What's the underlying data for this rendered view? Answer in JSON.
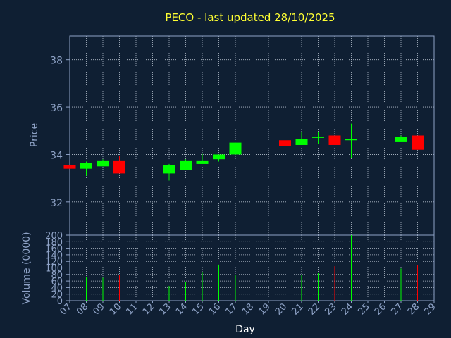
{
  "chart_data": [
    {
      "type": "candlestick",
      "title": "PECO - last updated 28/10/2025",
      "ylabel": "Price",
      "ylim": [
        30.6,
        39.0
      ],
      "y_ticks": [
        32,
        34,
        36,
        38
      ],
      "grid": true,
      "categories": [
        "07",
        "08",
        "09",
        "10",
        "11",
        "12",
        "13",
        "14",
        "15",
        "16",
        "17",
        "18",
        "19",
        "20",
        "21",
        "22",
        "23",
        "24",
        "25",
        "26",
        "27",
        "28",
        "29"
      ],
      "candles": [
        {
          "day": "07",
          "open": 33.55,
          "high": 33.55,
          "low": 33.4,
          "close": 33.4
        },
        {
          "day": "08",
          "open": 33.4,
          "high": 33.7,
          "low": 33.1,
          "close": 33.65
        },
        {
          "day": "09",
          "open": 33.5,
          "high": 33.8,
          "low": 33.5,
          "close": 33.75
        },
        {
          "day": "10",
          "open": 33.75,
          "high": 33.95,
          "low": 33.2,
          "close": 33.2
        },
        {
          "day": "13",
          "open": 33.2,
          "high": 33.6,
          "low": 32.9,
          "close": 33.55
        },
        {
          "day": "14",
          "open": 33.35,
          "high": 33.8,
          "low": 33.35,
          "close": 33.75
        },
        {
          "day": "15",
          "open": 33.6,
          "high": 34.05,
          "low": 33.6,
          "close": 33.75
        },
        {
          "day": "16",
          "open": 33.8,
          "high": 34.0,
          "low": 33.7,
          "close": 34.0
        },
        {
          "day": "17",
          "open": 34.0,
          "high": 34.5,
          "low": 34.0,
          "close": 34.5
        },
        {
          "day": "20",
          "open": 34.6,
          "high": 34.8,
          "low": 33.95,
          "close": 34.35
        },
        {
          "day": "21",
          "open": 34.4,
          "high": 34.95,
          "low": 34.4,
          "close": 34.65
        },
        {
          "day": "22",
          "open": 34.7,
          "high": 34.95,
          "low": 34.45,
          "close": 34.75
        },
        {
          "day": "23",
          "open": 34.8,
          "high": 34.8,
          "low": 34.4,
          "close": 34.4
        },
        {
          "day": "24",
          "open": 34.6,
          "high": 35.3,
          "low": 33.85,
          "close": 34.65
        },
        {
          "day": "27",
          "open": 34.55,
          "high": 34.8,
          "low": 34.55,
          "close": 34.75
        },
        {
          "day": "28",
          "open": 34.8,
          "high": 34.8,
          "low": 34.2,
          "close": 34.2
        }
      ]
    },
    {
      "type": "bar",
      "ylabel": "Volume (0000)",
      "xlabel": "Day",
      "ylim": [
        0,
        200
      ],
      "y_ticks": [
        0,
        20,
        40,
        60,
        80,
        100,
        120,
        140,
        160,
        180,
        200
      ],
      "grid": true,
      "categories": [
        "07",
        "08",
        "09",
        "10",
        "11",
        "12",
        "13",
        "14",
        "15",
        "16",
        "17",
        "18",
        "19",
        "20",
        "21",
        "22",
        "23",
        "24",
        "25",
        "26",
        "27",
        "28",
        "29"
      ],
      "bars": [
        {
          "day": "08",
          "value": 72,
          "color": "green"
        },
        {
          "day": "09",
          "value": 70,
          "color": "green"
        },
        {
          "day": "10",
          "value": 78,
          "color": "red"
        },
        {
          "day": "13",
          "value": 45,
          "color": "green"
        },
        {
          "day": "14",
          "value": 58,
          "color": "green"
        },
        {
          "day": "15",
          "value": 88,
          "color": "green"
        },
        {
          "day": "16",
          "value": 110,
          "color": "green"
        },
        {
          "day": "17",
          "value": 78,
          "color": "green"
        },
        {
          "day": "20",
          "value": 62,
          "color": "red"
        },
        {
          "day": "21",
          "value": 78,
          "color": "green"
        },
        {
          "day": "22",
          "value": 84,
          "color": "green"
        },
        {
          "day": "23",
          "value": 105,
          "color": "red"
        },
        {
          "day": "24",
          "value": 200,
          "color": "green"
        },
        {
          "day": "27",
          "value": 98,
          "color": "green"
        },
        {
          "day": "28",
          "value": 108,
          "color": "red"
        }
      ]
    }
  ],
  "colors": {
    "background": "#0f1f33",
    "axis": "#8fa3c7",
    "grid": "#b8c2d0",
    "up": "#00ff00",
    "down": "#ff0000",
    "title": "#ffff33",
    "xlabel": "#ffffff"
  }
}
